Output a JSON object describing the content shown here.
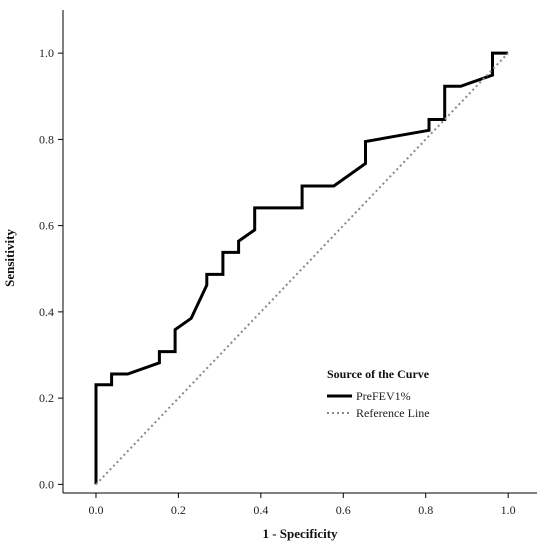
{
  "chart_data": {
    "type": "line",
    "xlabel": "1 - Specificity",
    "ylabel": "Sensitivity",
    "xlim": [
      -0.08,
      1.07
    ],
    "ylim": [
      -0.02,
      1.1
    ],
    "x_ticks": [
      0.0,
      0.2,
      0.4,
      0.6,
      0.8,
      1.0
    ],
    "y_ticks": [
      0.0,
      0.2,
      0.4,
      0.6,
      0.8,
      1.0
    ],
    "x_tick_labels": [
      "0.0",
      "0.2",
      "0.4",
      "0.6",
      "0.8",
      "1.0"
    ],
    "y_tick_labels": [
      "0.0",
      "0.2",
      "0.4",
      "0.6",
      "0.8",
      "1.0"
    ],
    "grid": false,
    "legend": {
      "title": "Source of the Curve",
      "position": "bottom-right"
    },
    "series": [
      {
        "name": "PreFEV1%",
        "style": "solid",
        "color": "#000000",
        "x": [
          0.0,
          0.0,
          0.038,
          0.038,
          0.077,
          0.154,
          0.154,
          0.192,
          0.192,
          0.231,
          0.269,
          0.269,
          0.308,
          0.308,
          0.346,
          0.346,
          0.385,
          0.385,
          0.5,
          0.5,
          0.577,
          0.654,
          0.654,
          0.808,
          0.808,
          0.846,
          0.846,
          0.885,
          0.962,
          0.962,
          1.0
        ],
        "y": [
          0.0,
          0.231,
          0.231,
          0.256,
          0.256,
          0.282,
          0.308,
          0.308,
          0.359,
          0.385,
          0.462,
          0.487,
          0.487,
          0.538,
          0.538,
          0.564,
          0.59,
          0.641,
          0.641,
          0.692,
          0.692,
          0.744,
          0.795,
          0.821,
          0.846,
          0.846,
          0.923,
          0.923,
          0.949,
          1.0,
          1.0
        ]
      },
      {
        "name": "Reference Line",
        "style": "dotted",
        "color": "#888888",
        "x": [
          0.0,
          1.0
        ],
        "y": [
          0.0,
          1.0
        ]
      }
    ]
  }
}
